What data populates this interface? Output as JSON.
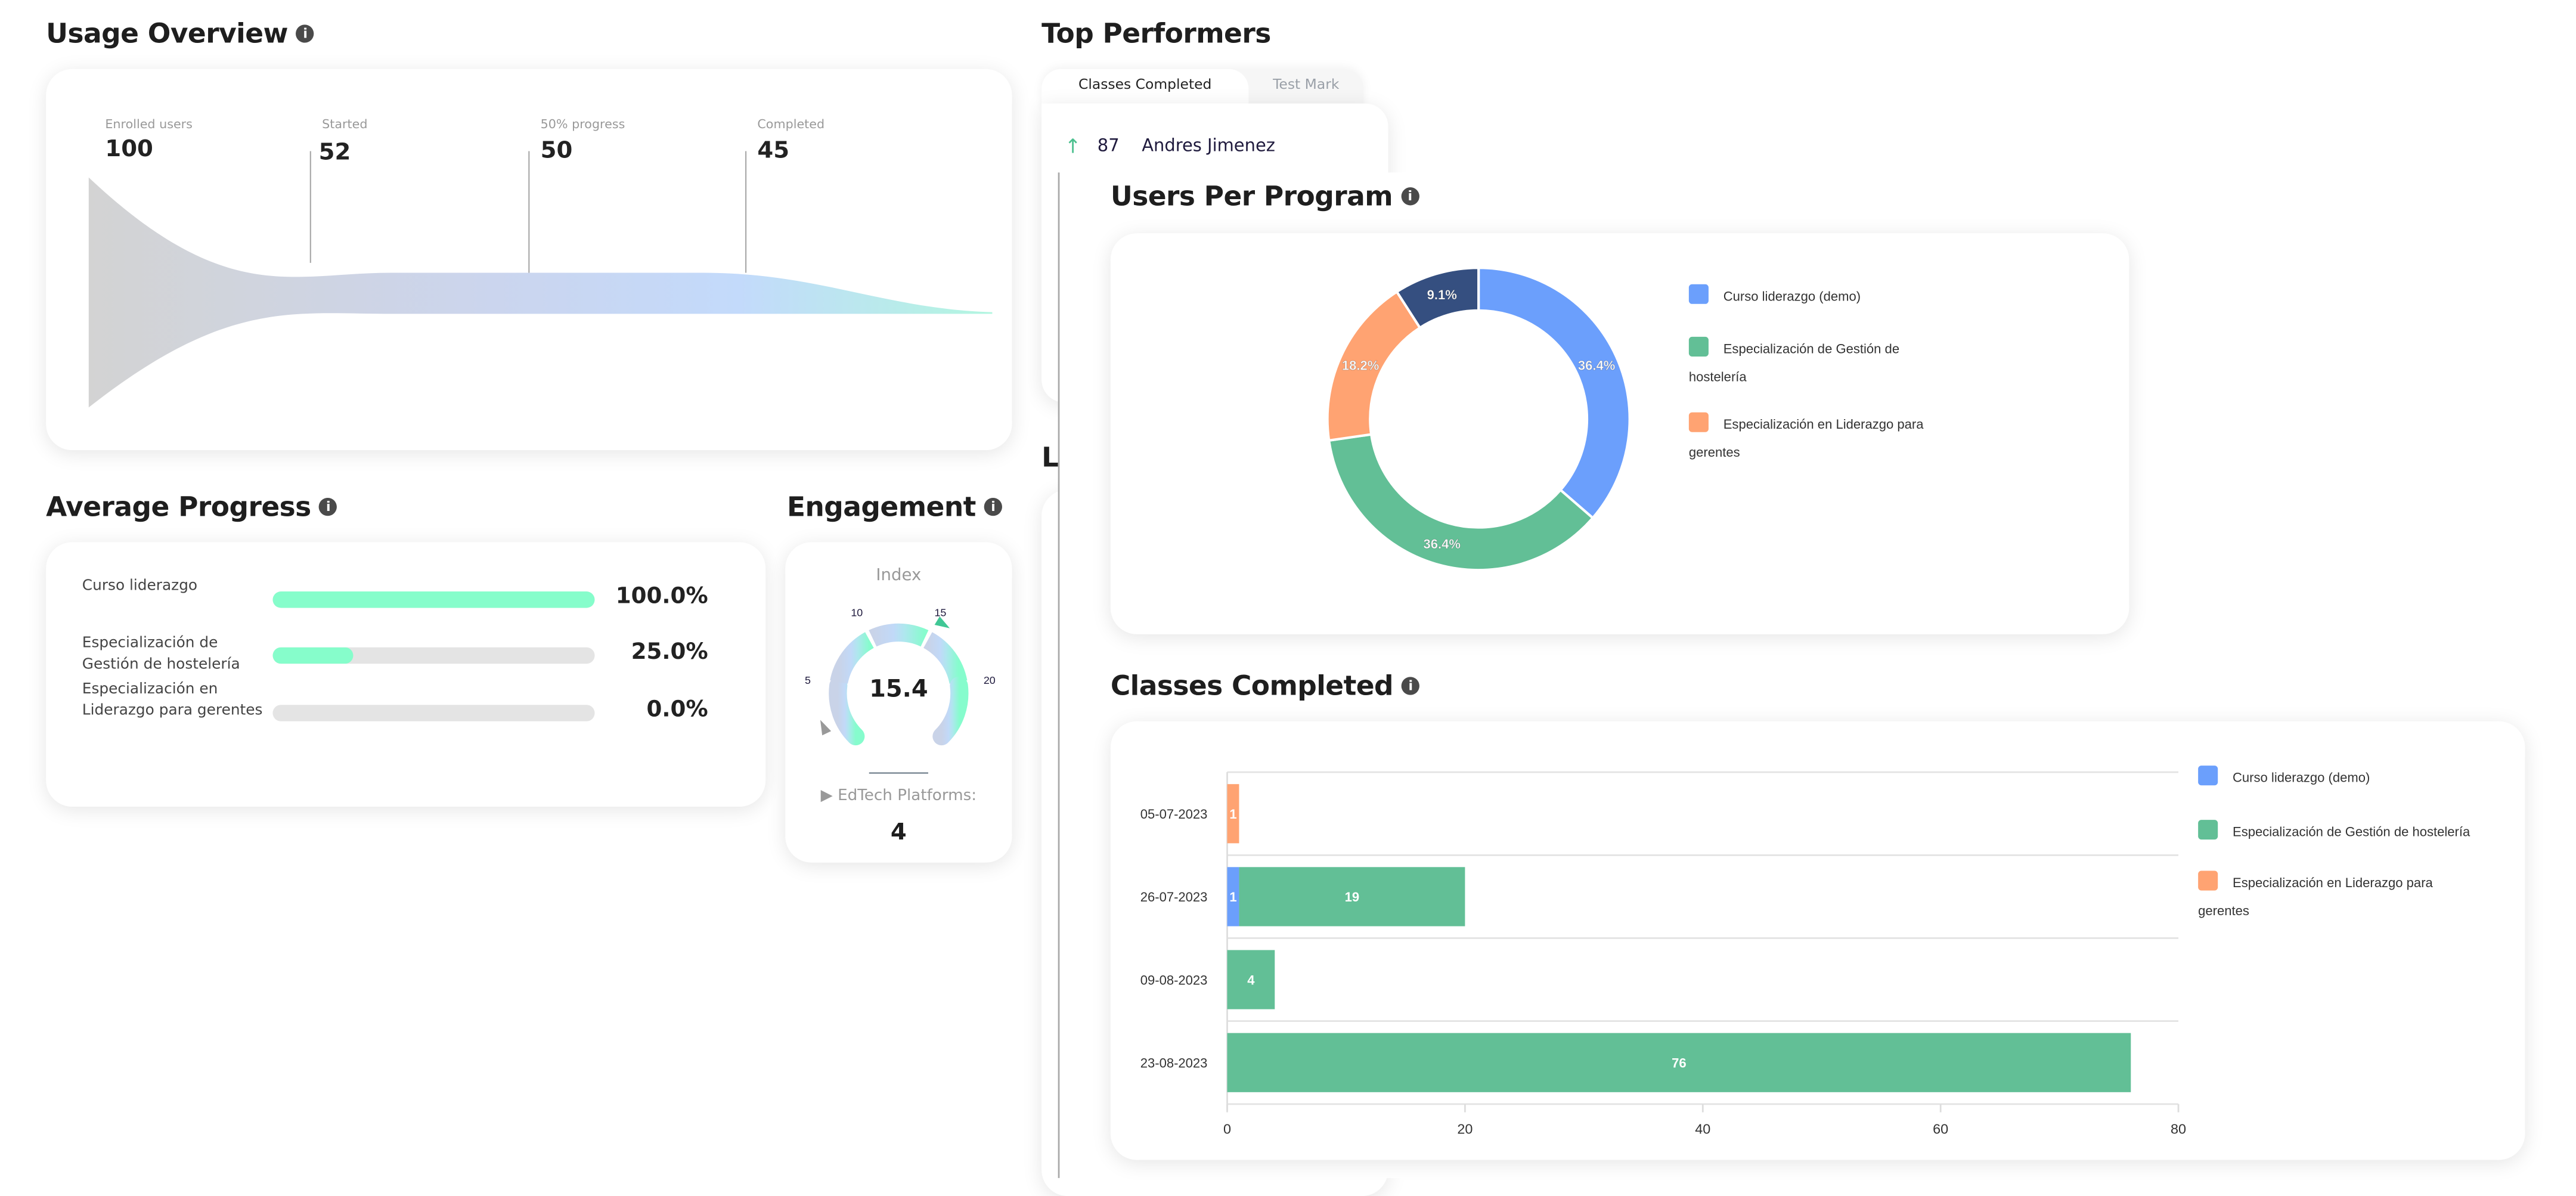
{
  "usage_overview": {
    "title": "Usage Overview",
    "stages": [
      {
        "label": "Enrolled users",
        "value": "100"
      },
      {
        "label": "Started",
        "value": "52"
      },
      {
        "label": "50% progress",
        "value": "50"
      },
      {
        "label": "Completed",
        "value": "45"
      }
    ]
  },
  "top_performers": {
    "title": "Top Performers",
    "tabs": [
      {
        "label": "Classes Completed",
        "active": true
      },
      {
        "label": "Test Mark",
        "active": false
      }
    ],
    "rows": [
      {
        "trend_icon": "arrow-up-icon",
        "value": "87",
        "name": "Andres Jimenez"
      }
    ],
    "next_title_partial": "Le"
  },
  "average_progress": {
    "title": "Average Progress",
    "items": [
      {
        "label": "Curso liderazgo",
        "percent": 100,
        "value": "100.0%"
      },
      {
        "label": "Especialización de Gestión de hostelería",
        "percent": 25,
        "value": "25.0%"
      },
      {
        "label": "Especialización en Liderazgo para gerentes",
        "percent": 0,
        "value": "0.0%"
      }
    ]
  },
  "engagement": {
    "title": "Engagement",
    "gauge_label": "Index",
    "value": "15.4",
    "value_num": 15.4,
    "gauge_range": [
      0,
      25
    ],
    "ticks": [
      "5",
      "10",
      "15",
      "20"
    ],
    "platforms_label": "EdTech Platforms:",
    "platforms_value": "4"
  },
  "colors": {
    "blue": "#6b9ffc",
    "green": "#62bf96",
    "orange": "#ffa372",
    "navy": "#354f80",
    "progress": "#86fdcb"
  },
  "chart_data": [
    {
      "type": "pie",
      "title": "Users Per Program",
      "donut": true,
      "legend": "right",
      "slices": [
        {
          "name": "Curso liderazgo (demo)",
          "value": 36.4,
          "label": "36.4%",
          "color": "#6b9ffc"
        },
        {
          "name": "Especialización de Gestión de hostelería",
          "value": 36.4,
          "label": "36.4%",
          "color": "#62bf96"
        },
        {
          "name": "Especialización en Liderazgo para gerentes",
          "value": 18.2,
          "label": "18.2%",
          "color": "#ffa372"
        },
        {
          "name": "",
          "value": 9.1,
          "label": "9.1%",
          "color": "#354f80"
        }
      ],
      "legend_entries": [
        "Curso liderazgo (demo)",
        "Especialización de Gestión de hostelería",
        "Especialización en Liderazgo para gerentes"
      ]
    },
    {
      "type": "bar",
      "orientation": "horizontal",
      "stacked": true,
      "title": "Classes Completed",
      "legend": "right",
      "categories": [
        "05-07-2023",
        "26-07-2023",
        "09-08-2023",
        "23-08-2023"
      ],
      "series": [
        {
          "name": "Curso liderazgo (demo)",
          "color": "#6b9ffc",
          "values": [
            0,
            1,
            0,
            0
          ]
        },
        {
          "name": "Especialización de Gestión de hostelería",
          "color": "#62bf96",
          "values": [
            0,
            19,
            4,
            76
          ]
        },
        {
          "name": "Especialización en Liderazgo para gerentes",
          "color": "#ffa372",
          "values": [
            1,
            0,
            0,
            0
          ]
        }
      ],
      "xlim": [
        0,
        80
      ],
      "xticks": [
        "0",
        "20",
        "40",
        "60",
        "80"
      ],
      "grid": true
    }
  ]
}
